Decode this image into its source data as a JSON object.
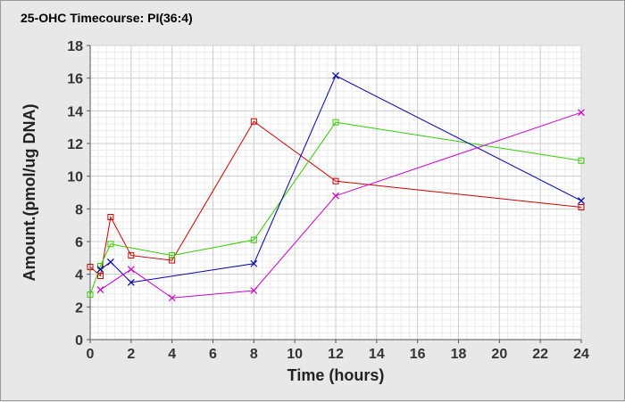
{
  "chart_data": {
    "type": "line",
    "title": "25-OHC Timecourse: PI(36:4)",
    "xlabel": "Time (hours)",
    "ylabel": "Amount.(pmol/ug DNA)",
    "xlim": [
      0,
      24
    ],
    "ylim": [
      0,
      18
    ],
    "xticks": [
      0,
      2,
      4,
      6,
      8,
      10,
      12,
      14,
      16,
      18,
      20,
      22,
      24
    ],
    "yticks": [
      0,
      2,
      4,
      6,
      8,
      10,
      12,
      14,
      16,
      18
    ],
    "grid": true,
    "series": [
      {
        "color": "#cc0000",
        "marker": "square",
        "points": [
          [
            0,
            4.45
          ],
          [
            0.5,
            3.9
          ],
          [
            1,
            7.5
          ],
          [
            2,
            5.15
          ],
          [
            4,
            4.85
          ],
          [
            8,
            13.35
          ],
          [
            12,
            9.7
          ],
          [
            24,
            8.1
          ]
        ]
      },
      {
        "color": "#33cc00",
        "marker": "square",
        "points": [
          [
            0,
            2.75
          ],
          [
            0.5,
            4.5
          ],
          [
            1,
            5.85
          ],
          [
            4,
            5.15
          ],
          [
            8,
            6.1
          ],
          [
            12,
            13.3
          ],
          [
            24,
            10.95
          ]
        ]
      },
      {
        "color": "#0000aa",
        "marker": "x",
        "points": [
          [
            0.5,
            4.3
          ],
          [
            1,
            4.75
          ],
          [
            2,
            3.5
          ],
          [
            8,
            4.65
          ],
          [
            12,
            16.15
          ],
          [
            24,
            8.5
          ]
        ]
      },
      {
        "color": "#cc00cc",
        "marker": "x",
        "points": [
          [
            0.5,
            3.05
          ],
          [
            2,
            4.3
          ],
          [
            4,
            2.55
          ],
          [
            8,
            3.0
          ],
          [
            12,
            8.8
          ],
          [
            24,
            13.9
          ]
        ]
      }
    ]
  }
}
